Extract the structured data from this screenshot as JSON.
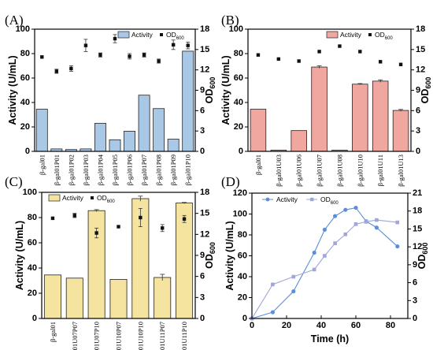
{
  "chart_data": [
    {
      "panel": "(A)",
      "type": "bar",
      "categories": [
        "β-gal01",
        "β-gal01P01",
        "β-gal01P02",
        "β-gal01P03",
        "β-gal01P04",
        "β-gal01P05",
        "β-gal01P06",
        "β-gal01P07",
        "β-gal01P08",
        "β-gal01P09",
        "β-gal01P10"
      ],
      "series": [
        {
          "name": "Activity",
          "type": "bar",
          "color": "#a9c8e6",
          "values": [
            34.5,
            2,
            1.5,
            2,
            23,
            9.5,
            16.5,
            46,
            35,
            10,
            82
          ]
        },
        {
          "name": "OD600",
          "type": "scatter",
          "axis": "right",
          "values": [
            13.9,
            11.8,
            12.2,
            15.6,
            14.2,
            16.6,
            14,
            14.2,
            13.3,
            15.7,
            15.6
          ],
          "errors": [
            0,
            0.3,
            0.4,
            0.9,
            0.3,
            0.6,
            0.4,
            0.3,
            0.3,
            0.7,
            0.5
          ]
        }
      ],
      "ylabel": "Activity (U/mL)",
      "ylabel_right": "OD600",
      "ylim": [
        0,
        100
      ],
      "ylim_right": [
        0,
        18
      ],
      "yticks": [
        "0",
        "20",
        "40",
        "60",
        "80",
        "100"
      ],
      "yticks_right": [
        "0",
        "3",
        "6",
        "9",
        "12",
        "15",
        "18"
      ],
      "legend": [
        "Activity",
        "OD600"
      ],
      "legend_position": "top-right"
    },
    {
      "panel": "(B)",
      "type": "bar",
      "categories": [
        "β-gal01",
        "β-gal01U03",
        "β-gal01U06",
        "β-gal01U07",
        "β-gal01U08",
        "β-gal01U10",
        "β-gal01U11",
        "β-gal01U13"
      ],
      "series": [
        {
          "name": "Activity",
          "type": "bar",
          "color": "#f0a79f",
          "values": [
            34.5,
            1,
            17,
            69,
            1,
            55,
            57.5,
            33.5
          ],
          "errors": [
            0,
            0,
            0,
            1,
            0,
            0.5,
            1,
            0.8
          ]
        },
        {
          "name": "OD600",
          "type": "scatter",
          "axis": "right",
          "values": [
            14.2,
            13.6,
            13.3,
            14.7,
            15.5,
            14.7,
            13.2,
            12.8
          ],
          "errors": [
            0,
            0,
            0,
            0,
            0,
            0,
            0,
            0
          ]
        }
      ],
      "ylabel": "Activity (U/mL)",
      "ylabel_right": "OD600",
      "ylim": [
        0,
        100
      ],
      "ylim_right": [
        0,
        18
      ],
      "yticks": [
        "0",
        "20",
        "40",
        "60",
        "80",
        "100"
      ],
      "yticks_right": [
        "0",
        "3",
        "6",
        "9",
        "12",
        "15",
        "18"
      ],
      "legend": [
        "Activity",
        "OD600"
      ],
      "legend_position": "top-right"
    },
    {
      "panel": "(C)",
      "type": "bar",
      "categories": [
        "β-gal01",
        "β-gal01U07P07",
        "β-gal01U07P10",
        "β-gal01U10P07",
        "β-gal01U10P10",
        "β-gal01U11P07",
        "β-gal01U11P10"
      ],
      "series": [
        {
          "name": "Activity",
          "type": "bar",
          "color": "#f5e3a0",
          "values": [
            34.5,
            32,
            85.5,
            31,
            95,
            32.5,
            91.5
          ],
          "errors": [
            0,
            0,
            0.8,
            0,
            2,
            2.5,
            0.5
          ]
        },
        {
          "name": "OD600",
          "type": "scatter",
          "axis": "right",
          "values": [
            14.3,
            14.7,
            12.2,
            13.1,
            14.4,
            12.9,
            14.2
          ],
          "errors": [
            0,
            0.3,
            0.7,
            0,
            1.3,
            0.5,
            0.5
          ]
        }
      ],
      "ylabel": "Activity (U/mL)",
      "ylabel_right": "OD600",
      "ylim": [
        0,
        100
      ],
      "ylim_right": [
        0,
        18
      ],
      "yticks": [
        "0",
        "20",
        "40",
        "60",
        "80",
        "100"
      ],
      "yticks_right": [
        "0",
        "3",
        "6",
        "9",
        "12",
        "15",
        "18"
      ],
      "legend": [
        "Activity",
        "OD600"
      ],
      "legend_position": "top-left"
    },
    {
      "panel": "(D)",
      "type": "line",
      "series": [
        {
          "name": "Activity",
          "axis": "left",
          "color": "#5b8fd9",
          "marker": "circle",
          "x": [
            0,
            12,
            24,
            36,
            42,
            48,
            54,
            60,
            66,
            72,
            84
          ],
          "y": [
            0,
            6,
            26,
            63,
            85,
            98,
            104,
            106,
            93,
            87,
            69
          ]
        },
        {
          "name": "OD600",
          "axis": "right",
          "color": "#9fa6d8",
          "marker": "square",
          "x": [
            0,
            12,
            24,
            36,
            42,
            48,
            54,
            60,
            66,
            72,
            84
          ],
          "y": [
            0,
            5.7,
            7,
            8.2,
            10.5,
            12.6,
            14.1,
            15.8,
            16.2,
            16.5,
            16.1
          ]
        }
      ],
      "xlabel": "Time (h)",
      "ylabel": "Activity (U/mL)",
      "ylabel_right": "OD600",
      "xlim": [
        0,
        90
      ],
      "ylim": [
        0,
        120
      ],
      "ylim_right": [
        0,
        21
      ],
      "xticks": [
        "0",
        "20",
        "40",
        "60",
        "80"
      ],
      "yticks": [
        "0",
        "20",
        "40",
        "60",
        "80",
        "100",
        "120"
      ],
      "yticks_right": [
        "0",
        "3",
        "6",
        "9",
        "12",
        "15",
        "18",
        "21"
      ],
      "legend": [
        "Activity",
        "OD600"
      ],
      "legend_position": "top-left"
    }
  ]
}
